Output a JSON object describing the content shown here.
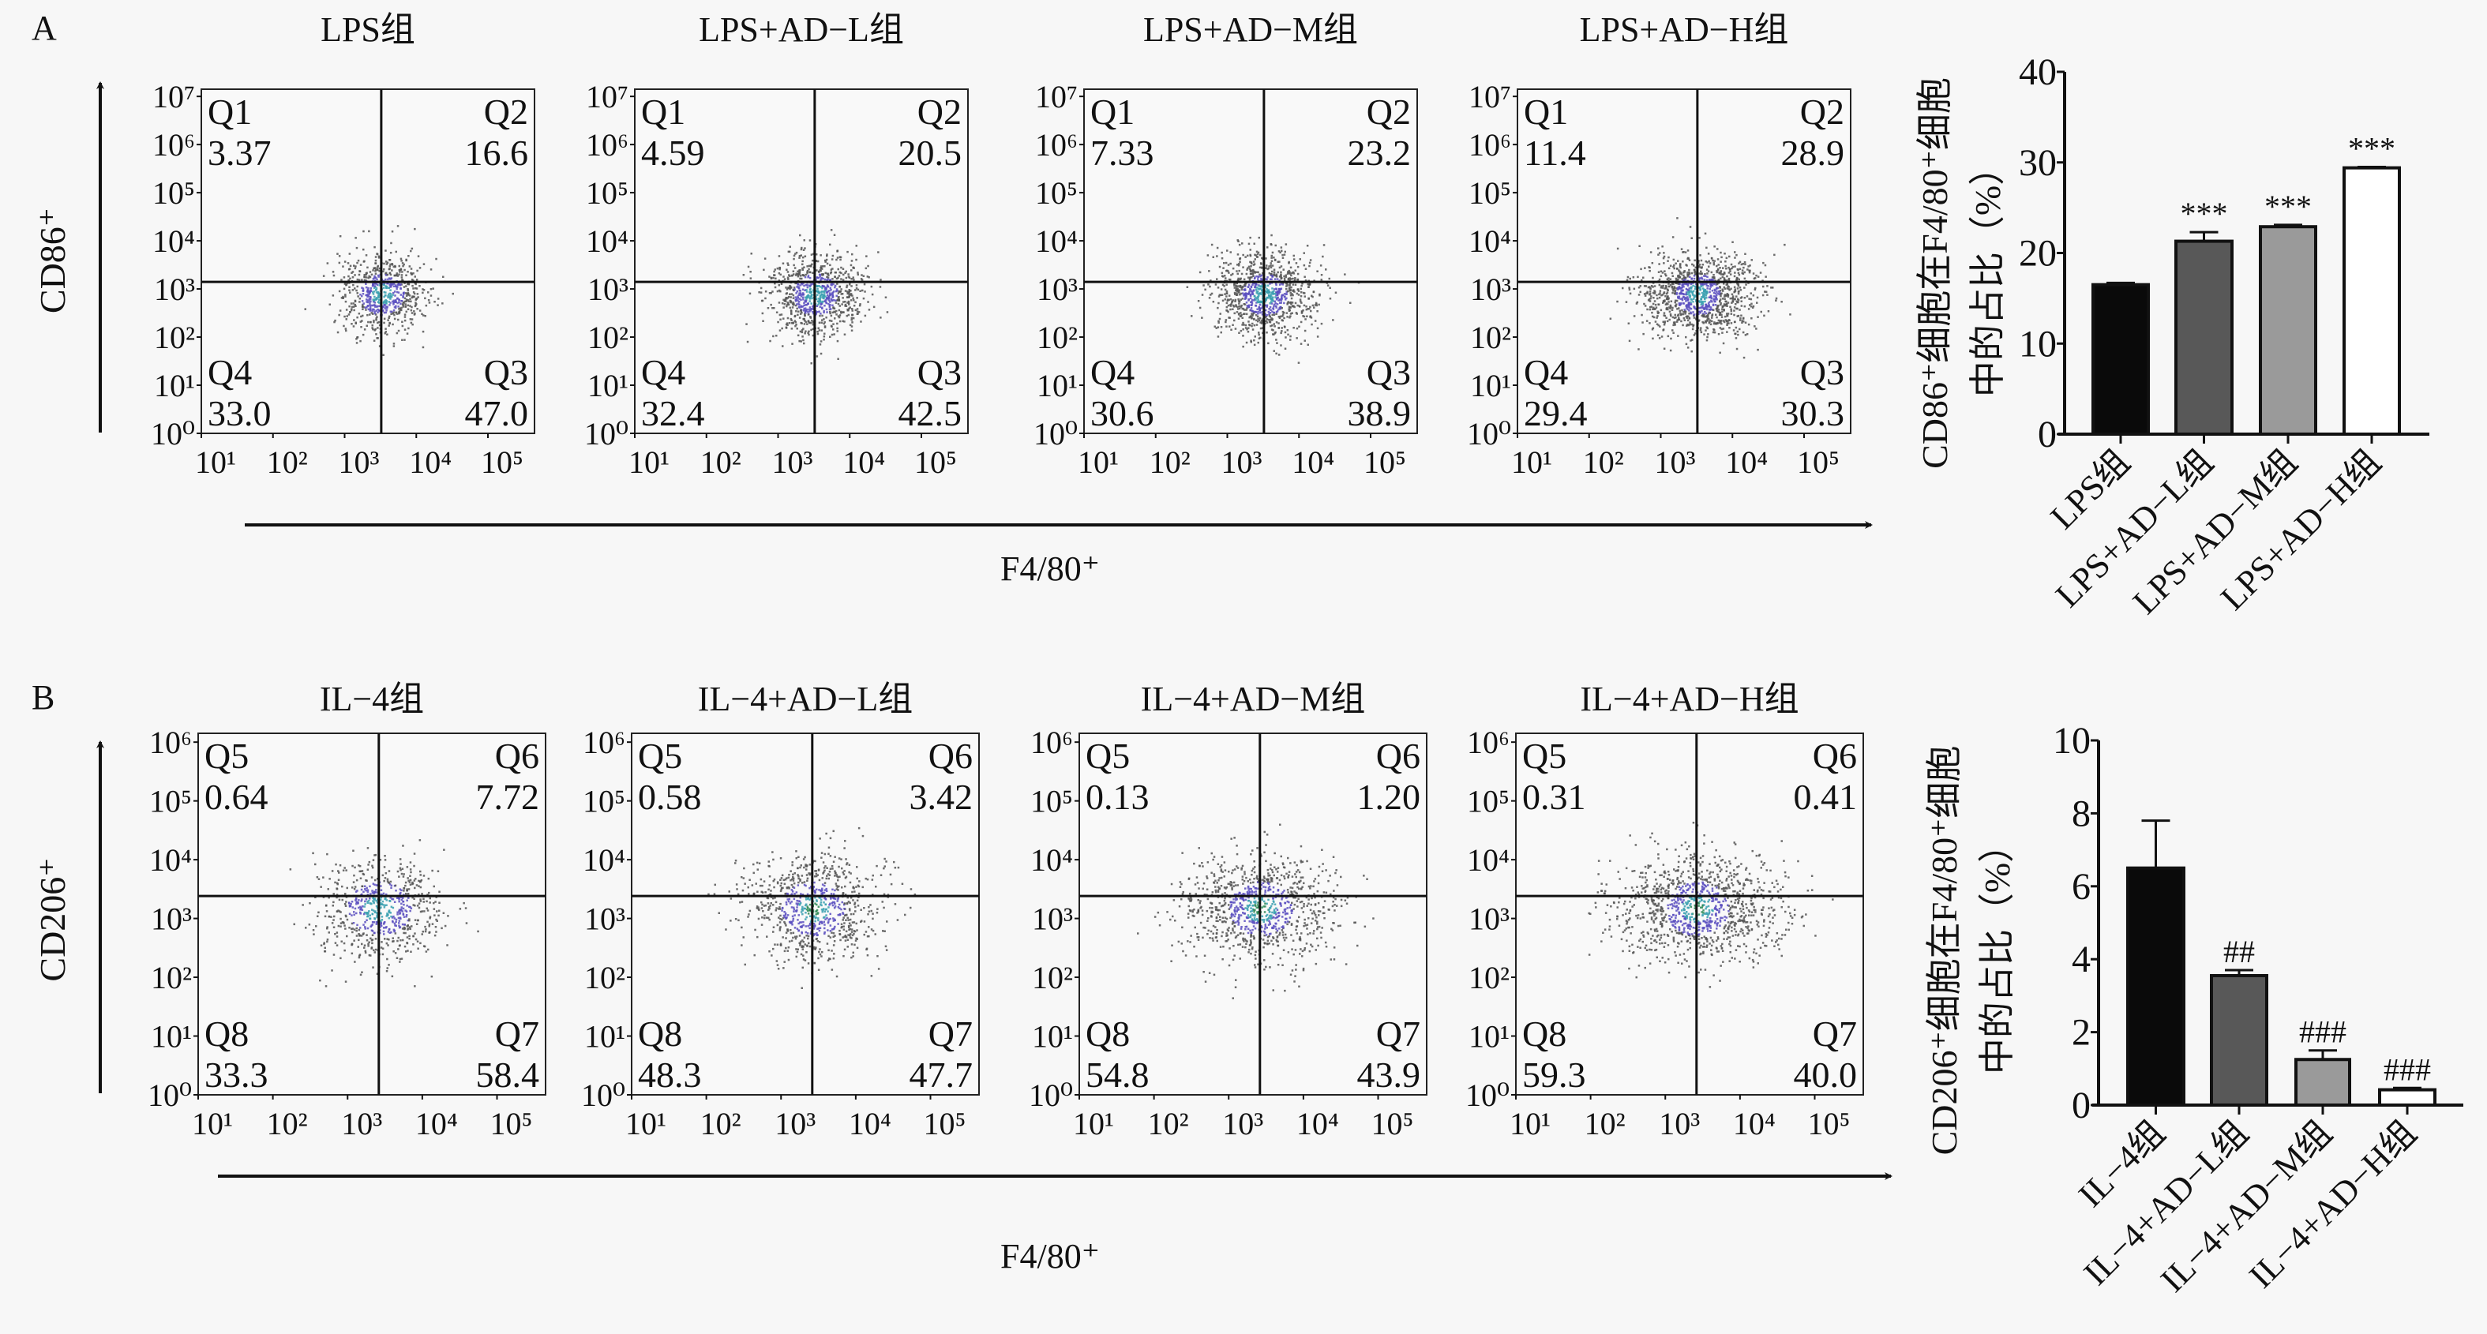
{
  "panel_letters": [
    "A",
    "B"
  ],
  "axis_labels": {
    "A_y": "CD86⁺",
    "A_x": "F4/80⁺",
    "B_y": "CD206⁺",
    "B_x": "F4/80⁺"
  },
  "chart_data": [
    {
      "type": "scatter",
      "panel": "A",
      "title": "LPS组",
      "y_ticks": [
        "10⁰",
        "10¹",
        "10²",
        "10³",
        "10⁴",
        "10⁵",
        "10⁶",
        "10⁷"
      ],
      "x_ticks": [
        "10¹",
        "10²",
        "10³",
        "10⁴",
        "10⁵"
      ],
      "quadrants": {
        "tl": {
          "name": "Q1",
          "value": "3.37"
        },
        "tr": {
          "name": "Q2",
          "value": "16.6"
        },
        "bl": {
          "name": "Q4",
          "value": "33.0"
        },
        "br": {
          "name": "Q3",
          "value": "47.0"
        }
      }
    },
    {
      "type": "scatter",
      "panel": "A",
      "title": "LPS+AD−L组",
      "y_ticks": [
        "10⁰",
        "10¹",
        "10²",
        "10³",
        "10⁴",
        "10⁵",
        "10⁶",
        "10⁷"
      ],
      "x_ticks": [
        "10¹",
        "10²",
        "10³",
        "10⁴",
        "10⁵"
      ],
      "quadrants": {
        "tl": {
          "name": "Q1",
          "value": "4.59"
        },
        "tr": {
          "name": "Q2",
          "value": "20.5"
        },
        "bl": {
          "name": "Q4",
          "value": "32.4"
        },
        "br": {
          "name": "Q3",
          "value": "42.5"
        }
      }
    },
    {
      "type": "scatter",
      "panel": "A",
      "title": "LPS+AD−M组",
      "y_ticks": [
        "10⁰",
        "10¹",
        "10²",
        "10³",
        "10⁴",
        "10⁵",
        "10⁶",
        "10⁷"
      ],
      "x_ticks": [
        "10¹",
        "10²",
        "10³",
        "10⁴",
        "10⁵"
      ],
      "quadrants": {
        "tl": {
          "name": "Q1",
          "value": "7.33"
        },
        "tr": {
          "name": "Q2",
          "value": "23.2"
        },
        "bl": {
          "name": "Q4",
          "value": "30.6"
        },
        "br": {
          "name": "Q3",
          "value": "38.9"
        }
      }
    },
    {
      "type": "scatter",
      "panel": "A",
      "title": "LPS+AD−H组",
      "y_ticks": [
        "10⁰",
        "10¹",
        "10²",
        "10³",
        "10⁴",
        "10⁵",
        "10⁶",
        "10⁷"
      ],
      "x_ticks": [
        "10¹",
        "10²",
        "10³",
        "10⁴",
        "10⁵"
      ],
      "quadrants": {
        "tl": {
          "name": "Q1",
          "value": "11.4"
        },
        "tr": {
          "name": "Q2",
          "value": "28.9"
        },
        "bl": {
          "name": "Q4",
          "value": "29.4"
        },
        "br": {
          "name": "Q3",
          "value": "30.3"
        }
      }
    },
    {
      "type": "scatter",
      "panel": "B",
      "title": "IL−4组",
      "y_ticks": [
        "10⁰",
        "10¹",
        "10²",
        "10³",
        "10⁴",
        "10⁵",
        "10⁶"
      ],
      "x_ticks": [
        "10¹",
        "10²",
        "10³",
        "10⁴",
        "10⁵"
      ],
      "quadrants": {
        "tl": {
          "name": "Q5",
          "value": "0.64"
        },
        "tr": {
          "name": "Q6",
          "value": "7.72"
        },
        "bl": {
          "name": "Q8",
          "value": "33.3"
        },
        "br": {
          "name": "Q7",
          "value": "58.4"
        }
      }
    },
    {
      "type": "scatter",
      "panel": "B",
      "title": "IL−4+AD−L组",
      "y_ticks": [
        "10⁰",
        "10¹",
        "10²",
        "10³",
        "10⁴",
        "10⁵",
        "10⁶"
      ],
      "x_ticks": [
        "10¹",
        "10²",
        "10³",
        "10⁴",
        "10⁵"
      ],
      "quadrants": {
        "tl": {
          "name": "Q5",
          "value": "0.58"
        },
        "tr": {
          "name": "Q6",
          "value": "3.42"
        },
        "bl": {
          "name": "Q8",
          "value": "48.3"
        },
        "br": {
          "name": "Q7",
          "value": "47.7"
        }
      }
    },
    {
      "type": "scatter",
      "panel": "B",
      "title": "IL−4+AD−M组",
      "y_ticks": [
        "10⁰",
        "10¹",
        "10²",
        "10³",
        "10⁴",
        "10⁵",
        "10⁶"
      ],
      "x_ticks": [
        "10¹",
        "10²",
        "10³",
        "10⁴",
        "10⁵"
      ],
      "quadrants": {
        "tl": {
          "name": "Q5",
          "value": "0.13"
        },
        "tr": {
          "name": "Q6",
          "value": "1.20"
        },
        "bl": {
          "name": "Q8",
          "value": "54.8"
        },
        "br": {
          "name": "Q7",
          "value": "43.9"
        }
      }
    },
    {
      "type": "scatter",
      "panel": "B",
      "title": "IL−4+AD−H组",
      "y_ticks": [
        "10⁰",
        "10¹",
        "10²",
        "10³",
        "10⁴",
        "10⁵",
        "10⁶"
      ],
      "x_ticks": [
        "10¹",
        "10²",
        "10³",
        "10⁴",
        "10⁵"
      ],
      "quadrants": {
        "tl": {
          "name": "Q5",
          "value": "0.31"
        },
        "tr": {
          "name": "Q6",
          "value": "0.41"
        },
        "bl": {
          "name": "Q8",
          "value": "59.3"
        },
        "br": {
          "name": "Q7",
          "value": "40.0"
        }
      }
    },
    {
      "type": "bar",
      "panel": "A",
      "ylabel_lines": [
        "CD86⁺细胞在F4/80⁺细胞",
        "中的占比（%）"
      ],
      "ylim": [
        0,
        40
      ],
      "y_ticks": [
        0,
        10,
        20,
        30,
        40
      ],
      "categories": [
        "LPS组",
        "LPS+AD−L组",
        "LPS+AD−M组",
        "LPS+AD−H组"
      ],
      "values": [
        16.5,
        21.3,
        22.9,
        29.4
      ],
      "errors": [
        0.2,
        1.0,
        0.2,
        0.1
      ],
      "significance": [
        "",
        "***",
        "***",
        "***"
      ],
      "colors": [
        "#0a0a0a",
        "#585858",
        "#9a9a9a",
        "#ffffff"
      ]
    },
    {
      "type": "bar",
      "panel": "B",
      "ylabel_lines": [
        "CD206⁺细胞在F4/80⁺细胞",
        "中的占比（%）"
      ],
      "ylim": [
        0,
        10
      ],
      "y_ticks": [
        0,
        2,
        4,
        6,
        8,
        10
      ],
      "categories": [
        "IL−4组",
        "IL−4+AD−L组",
        "IL−4+AD−M组",
        "IL−4+AD−H组"
      ],
      "values": [
        6.5,
        3.55,
        1.25,
        0.42
      ],
      "errors": [
        1.3,
        0.15,
        0.25,
        0.05
      ],
      "significance": [
        "",
        "##",
        "###",
        "###"
      ],
      "colors": [
        "#0a0a0a",
        "#585858",
        "#9a9a9a",
        "#ffffff"
      ]
    }
  ]
}
